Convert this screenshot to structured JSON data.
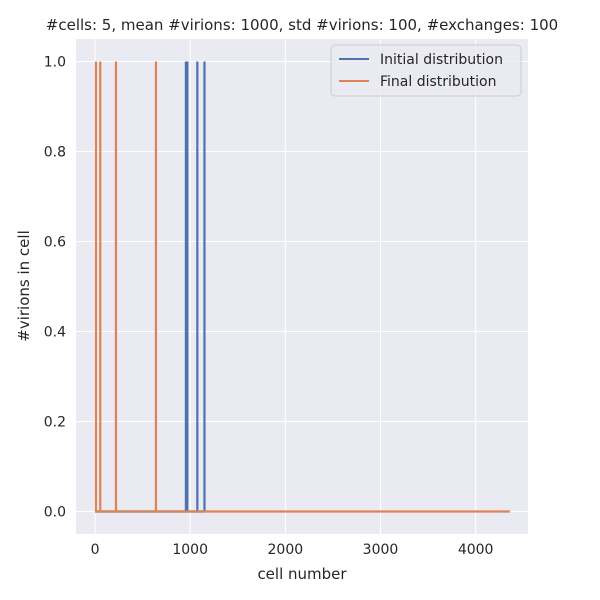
{
  "chart_data": {
    "type": "line",
    "title": "#cells: 5, mean #virions: 1000, std #virions: 100, #exchanges: 100",
    "xlabel": "cell number",
    "ylabel": "#virions in cell",
    "xlim": [
      -200,
      4550
    ],
    "ylim": [
      -0.05,
      1.05
    ],
    "xticks": [
      0,
      1000,
      2000,
      3000,
      4000
    ],
    "xtick_labels": [
      "0",
      "1000",
      "2000",
      "3000",
      "4000"
    ],
    "yticks": [
      0.0,
      0.2,
      0.4,
      0.6,
      0.8,
      1.0
    ],
    "ytick_labels": [
      "0.0",
      "0.2",
      "0.4",
      "0.6",
      "0.8",
      "1.0"
    ],
    "grid": true,
    "legend_position": "upper-right",
    "series": [
      {
        "name": "Initial distribution",
        "color": "#4c72b0",
        "spike_x": [
          955,
          970,
          1075,
          1150
        ],
        "x_max": 1150
      },
      {
        "name": "Final distribution",
        "color": "#dd8452",
        "spike_x": [
          10,
          55,
          220,
          640
        ],
        "x_max": 4360
      }
    ],
    "background": "#eaeaf2"
  }
}
